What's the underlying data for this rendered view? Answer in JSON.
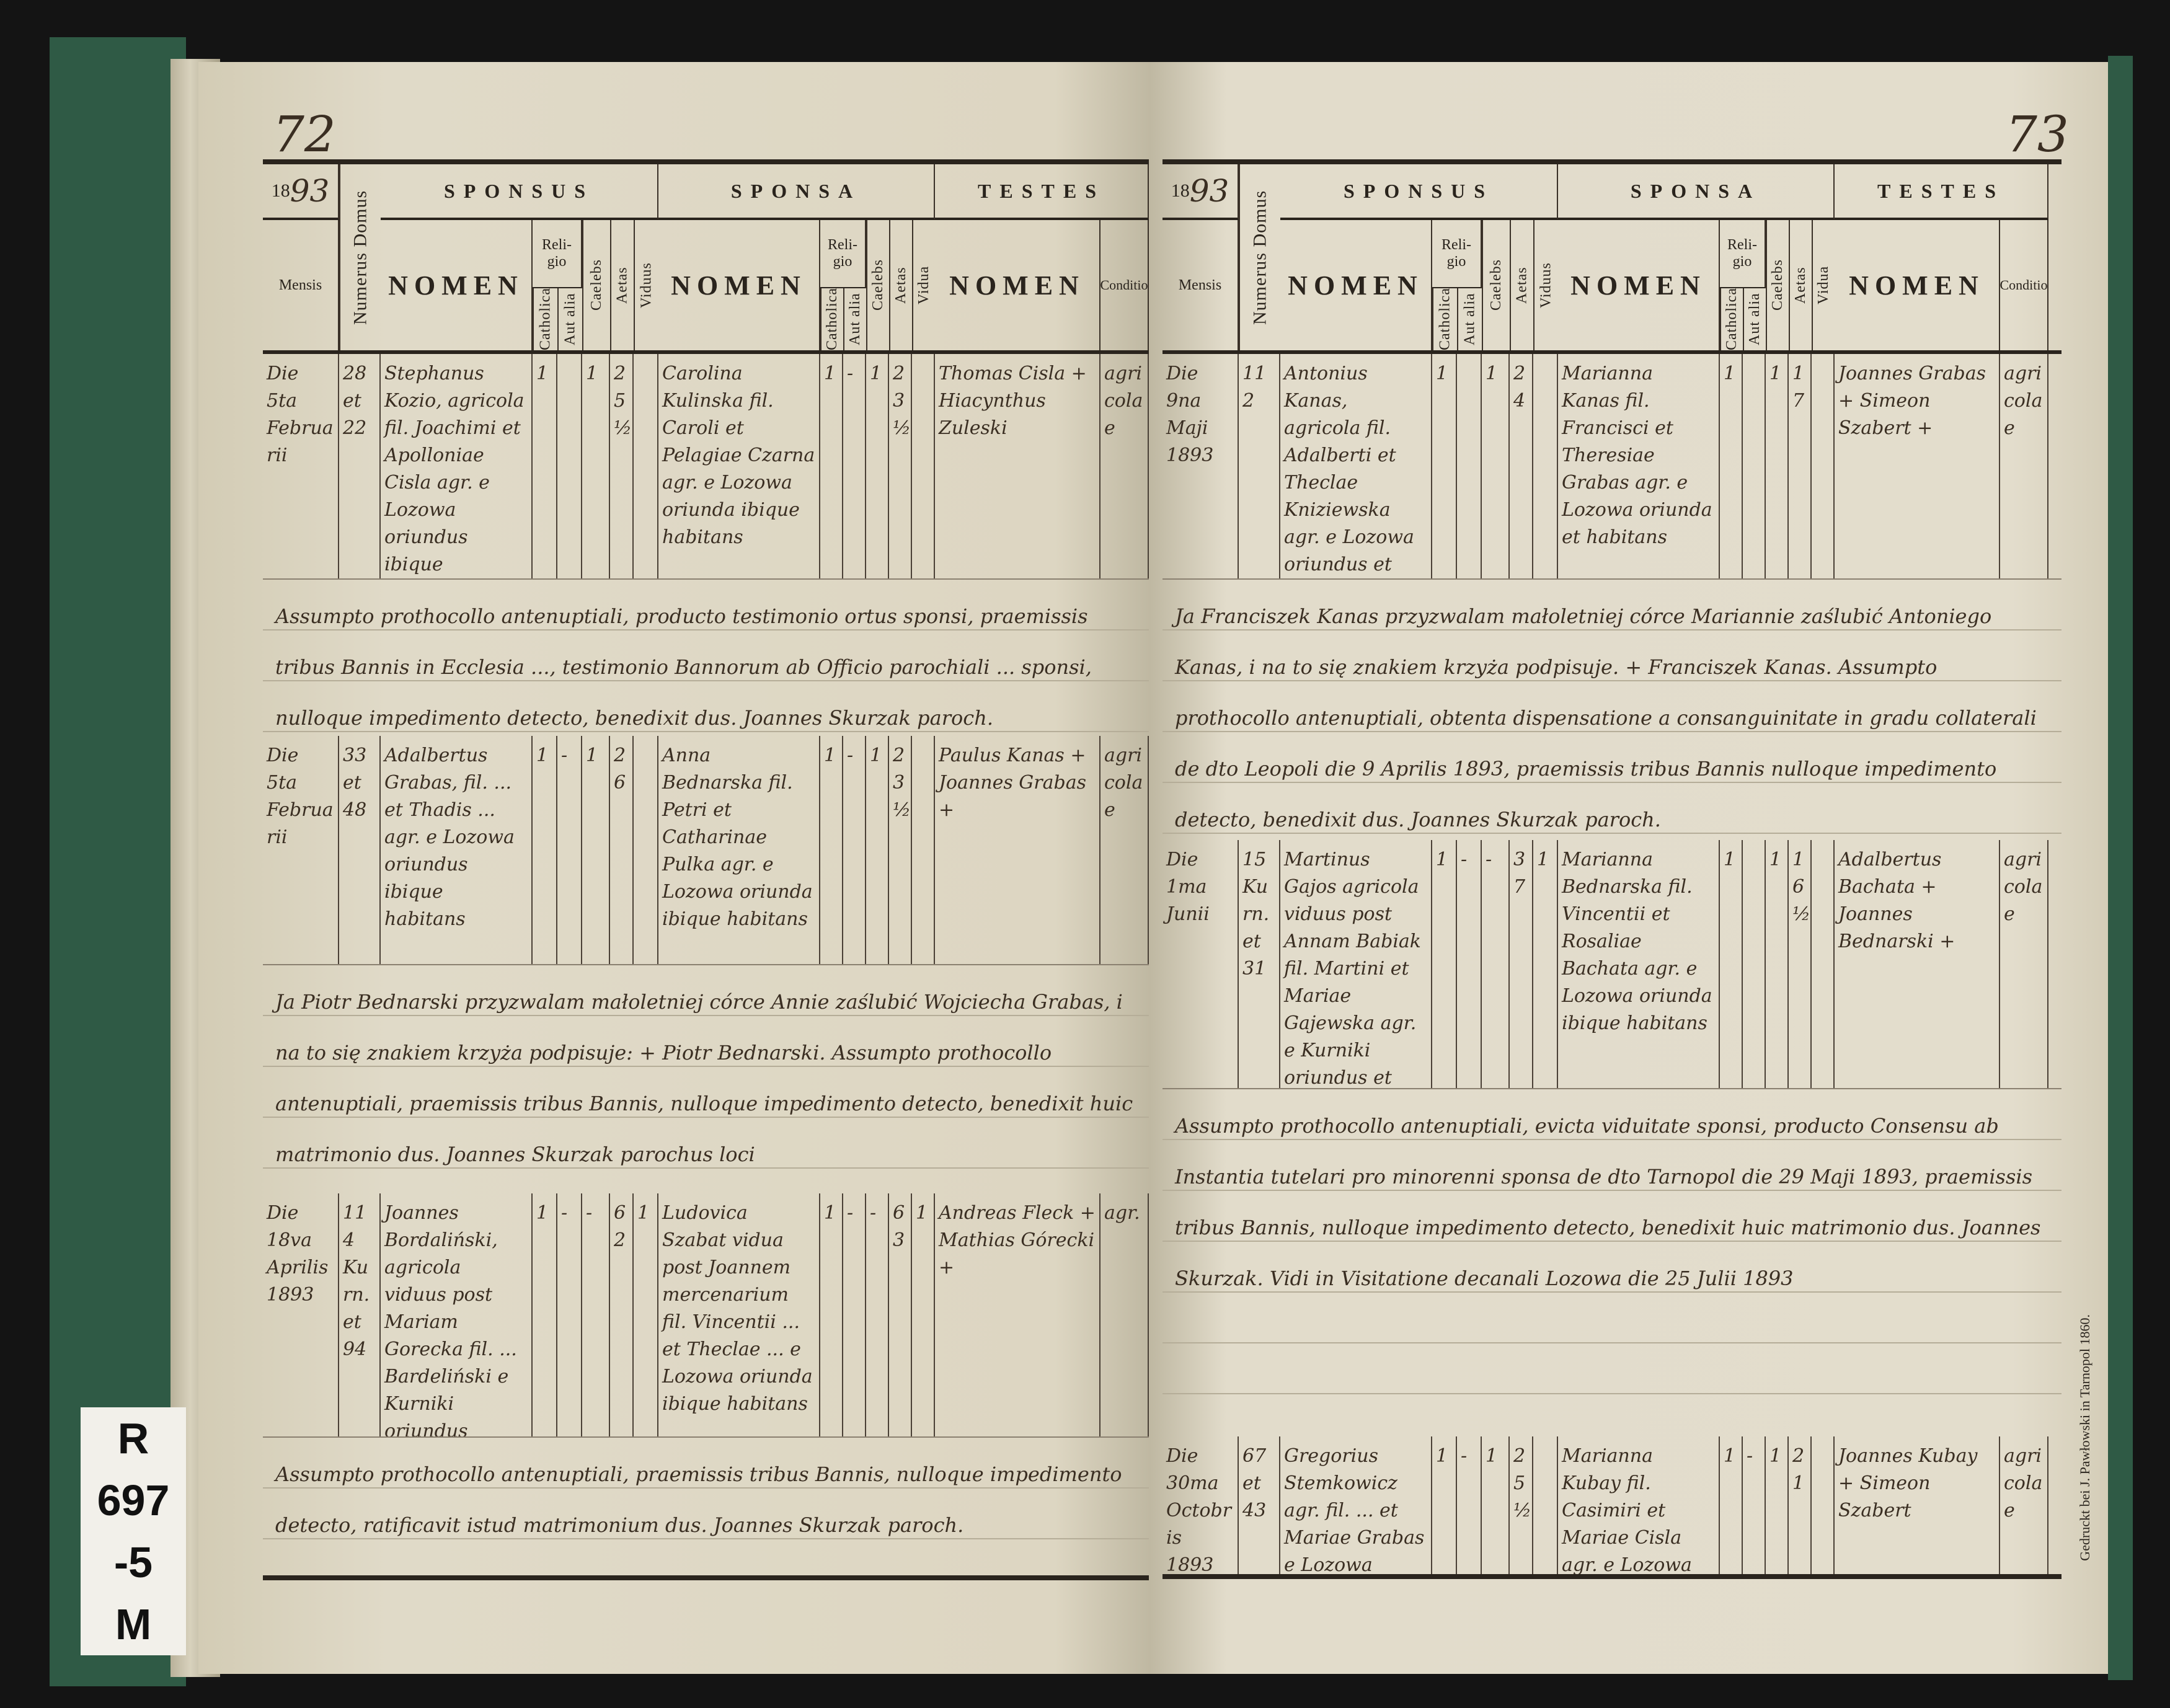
{
  "header": {
    "year_prefix": "18",
    "mensis": "Mensis",
    "numerus_domus": "Numerus Domus",
    "sponsus": "SPONSUS",
    "sponsa": "SPONSA",
    "testes": "TESTES",
    "nomen": "NOMEN",
    "religio": "Reli-gio",
    "catholica": "Catholica",
    "aut_alia": "Aut alia",
    "caelebs": "Caelebs",
    "aetas": "Aetas",
    "viduus": "Viduus",
    "vidua": "Vidua",
    "conditio": "Conditio"
  },
  "imprint": "Gedruckt bei J. Pawłowski in Tarnopol 1860.",
  "archive_label": [
    "R 697",
    "-5",
    "M"
  ],
  "pages": [
    {
      "page_number": "72",
      "year_written": "93",
      "entries": [
        {
          "mensis": "Die 5ta Februarii",
          "domus": "28 et 22",
          "sponsus_nomen": "Stephanus Kozio, agricola fil. Joachimi et Apolloniae Cisla agr. e Lozowa oriundus ibique habitans",
          "sponsus_catholica": "1",
          "sponsus_aut_alia": "",
          "sponsus_caelebs": "1",
          "sponsus_aetas": "25½",
          "sponsus_viduus": "",
          "sponsa_nomen": "Carolina Kulinska fil. Caroli et Pelagiae Czarna agr. e Lozowa oriunda ibique habitans",
          "sponsa_catholica": "1",
          "sponsa_aut_alia": "-",
          "sponsa_caelebs": "1",
          "sponsa_aetas": "23½",
          "sponsa_vidua": "",
          "testes_nomen": "Thomas Cisla + Hiacynthus Zuleski",
          "testes_conditio": "agricolae",
          "note": "Assumpto prothocollo antenuptiali, producto testimonio ortus sponsi, praemissis tribus Bannis in Ecclesia ..., testimonio Bannorum ab Officio parochiali ... sponsi, nulloque impedimento detecto, benedixit dus. Joannes Skurzak paroch."
        },
        {
          "mensis": "Die 5ta Februarii",
          "domus": "33 et 48",
          "sponsus_nomen": "Adalbertus Grabas, fil. ... et Thadis ... agr. e Lozowa oriundus ibique habitans",
          "sponsus_catholica": "1",
          "sponsus_aut_alia": "-",
          "sponsus_caelebs": "1",
          "sponsus_aetas": "26",
          "sponsus_viduus": "",
          "sponsa_nomen": "Anna Bednarska fil. Petri et Catharinae Pulka agr. e Lozowa oriunda ibique habitans",
          "sponsa_catholica": "1",
          "sponsa_aut_alia": "-",
          "sponsa_caelebs": "1",
          "sponsa_aetas": "23½",
          "sponsa_vidua": "",
          "testes_nomen": "Paulus Kanas + Joannes Grabas +",
          "testes_conditio": "agricolae",
          "note": "Ja Piotr Bednarski przyzwalam małoletniej córce Annie zaślubić Wojciecha Grabas, i na to się znakiem krzyża podpisuje: + Piotr Bednarski. Assumpto prothocollo antenuptiali, praemissis tribus Bannis, nulloque impedimento detecto, benedixit huic matrimonio dus. Joannes Skurzak parochus loci"
        },
        {
          "mensis": "Die 18va Aprilis 1893",
          "domus": "114 Kurn. et 94",
          "sponsus_nomen": "Joannes Bordaliński, agricola viduus post Mariam Gorecka fil. ... Bardeliński e Kurniki oriundus ibique habitans",
          "sponsus_catholica": "1",
          "sponsus_aut_alia": "-",
          "sponsus_caelebs": "-",
          "sponsus_aetas": "62",
          "sponsus_viduus": "1",
          "sponsa_nomen": "Ludovica Szabat vidua post Joannem mercenarium fil. Vincentii ... et Theclae ... e Lozowa oriunda ibique habitans",
          "sponsa_catholica": "1",
          "sponsa_aut_alia": "-",
          "sponsa_caelebs": "-",
          "sponsa_aetas": "63",
          "sponsa_vidua": "1",
          "testes_nomen": "Andreas Fleck + Mathias Górecki +",
          "testes_conditio": "agr.",
          "note": "Assumpto prothocollo antenuptiali, praemissis tribus Bannis, nulloque impedimento detecto, ratificavit istud matrimonium dus. Joannes Skurzak paroch."
        }
      ]
    },
    {
      "page_number": "73",
      "year_written": "93",
      "entries": [
        {
          "mensis": "Die 9na Maji 1893",
          "domus": "112",
          "sponsus_nomen": "Antonius Kanas, agricola fil. Adalberti et Theclae Kniziewska agr. e Lozowa oriundus et habitans",
          "sponsus_catholica": "1",
          "sponsus_aut_alia": "",
          "sponsus_caelebs": "1",
          "sponsus_aetas": "24",
          "sponsus_viduus": "",
          "sponsa_nomen": "Marianna Kanas fil. Francisci et Theresiae Grabas agr. e Lozowa oriunda et habitans",
          "sponsa_catholica": "1",
          "sponsa_aut_alia": "",
          "sponsa_caelebs": "1",
          "sponsa_aetas": "17",
          "sponsa_vidua": "",
          "testes_nomen": "Joannes Grabas + Simeon Szabert +",
          "testes_conditio": "agricolae",
          "note": "Ja Franciszek Kanas przyzwalam małoletniej córce Mariannie zaślubić Antoniego Kanas, i na to się znakiem krzyża podpisuje. + Franciszek Kanas. Assumpto prothocollo antenuptiali, obtenta dispensatione a consanguinitate in gradu collaterali de dto Leopoli die 9 Aprilis 1893, praemissis tribus Bannis nulloque impedimento detecto, benedixit dus. Joannes Skurzak paroch."
        },
        {
          "mensis": "Die 1ma Junii",
          "domus": "15 Kurn. et 31",
          "sponsus_nomen": "Martinus Gajos agricola viduus post Annam Babiak fil. Martini et Mariae Gajewska agr. e Kurniki oriundus et habitans",
          "sponsus_catholica": "1",
          "sponsus_aut_alia": "-",
          "sponsus_caelebs": "-",
          "sponsus_aetas": "37",
          "sponsus_viduus": "1",
          "sponsa_nomen": "Marianna Bednarska fil. Vincentii et Rosaliae Bachata agr. e Lozowa oriunda ibique habitans",
          "sponsa_catholica": "1",
          "sponsa_aut_alia": "",
          "sponsa_caelebs": "1",
          "sponsa_aetas": "16½",
          "sponsa_vidua": "",
          "testes_nomen": "Adalbertus Bachata + Joannes Bednarski +",
          "testes_conditio": "agricolae",
          "note": "Assumpto prothocollo antenuptiali, evicta viduitate sponsi, producto Consensu ab Instantia tutelari pro minorenni sponsa de dto Tarnopol die 29 Maji 1893, praemissis tribus Bannis, nulloque impedimento detecto, benedixit huic matrimonio dus. Joannes Skurzak. Vidi in Visitatione decanali Lozowa die 25 Julii 1893"
        },
        {
          "mensis": "Die 30ma Octobris 1893",
          "domus": "67 et 43",
          "sponsus_nomen": "Gregorius Stemkowicz agr. fil. ... et Mariae Grabas e Lozowa oriundus et habitans",
          "sponsus_catholica": "1",
          "sponsus_aut_alia": "-",
          "sponsus_caelebs": "1",
          "sponsus_aetas": "25½",
          "sponsus_viduus": "",
          "sponsa_nomen": "Marianna Kubay fil. Casimiri et Mariae Cisla agr. e Lozowa oriunda ibique habitans",
          "sponsa_catholica": "1",
          "sponsa_aut_alia": "-",
          "sponsa_caelebs": "1",
          "sponsa_aetas": "21",
          "sponsa_vidua": "",
          "testes_nomen": "Joannes Kubay + Simeon Szabert",
          "testes_conditio": "agricolae",
          "note": ""
        }
      ]
    }
  ]
}
